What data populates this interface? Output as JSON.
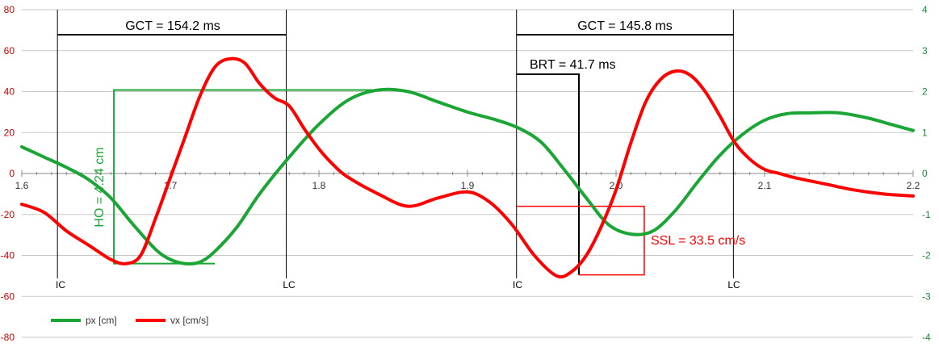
{
  "chart_data": {
    "type": "line",
    "title": "",
    "xlim": [
      1.6,
      2.2
    ],
    "ylim_left": [
      -80,
      80
    ],
    "ylim_right": [
      -4,
      4
    ],
    "x_ticks": [
      "1.6",
      "1.7",
      "1.8",
      "1.9",
      "2.0",
      "2.1",
      "2.2"
    ],
    "x_tick_values": [
      1.6,
      1.7,
      1.8,
      1.9,
      2.0,
      2.1,
      2.2
    ],
    "y_left_ticks": [
      "80",
      "60",
      "40",
      "20",
      "0",
      "-20",
      "-40",
      "-60",
      "-80"
    ],
    "y_left_tick_values": [
      80,
      60,
      40,
      20,
      0,
      -20,
      -40,
      -60,
      -80
    ],
    "y_right_ticks": [
      "4",
      "3",
      "2",
      "1",
      "0",
      "-1",
      "-2",
      "-3",
      "-4"
    ],
    "y_right_tick_values": [
      4,
      3,
      2,
      1,
      0,
      -1,
      -2,
      -3,
      -4
    ],
    "grid": true,
    "legend_position": "bottom-left",
    "colors": {
      "px": "#1aa535",
      "vx": "#ff0000",
      "annotation": "#000000"
    },
    "series": [
      {
        "name": "px [cm]",
        "axis": "right",
        "color": "#1aa535",
        "x": [
          1.6,
          1.615,
          1.63,
          1.645,
          1.66,
          1.675,
          1.69,
          1.7,
          1.71,
          1.72,
          1.73,
          1.745,
          1.76,
          1.78,
          1.8,
          1.82,
          1.84,
          1.86,
          1.88,
          1.9,
          1.92,
          1.935,
          1.95,
          1.965,
          1.98,
          1.995,
          2.01,
          2.025,
          2.04,
          2.055,
          2.07,
          2.085,
          2.1,
          2.115,
          2.13,
          2.15,
          2.17,
          2.185,
          2.2
        ],
        "y": [
          0.65,
          0.4,
          0.15,
          -0.15,
          -0.6,
          -1.25,
          -1.85,
          -2.1,
          -2.2,
          -2.16,
          -1.9,
          -1.3,
          -0.5,
          0.4,
          1.2,
          1.8,
          2.04,
          2.0,
          1.75,
          1.5,
          1.3,
          1.1,
          0.75,
          0.1,
          -0.6,
          -1.25,
          -1.48,
          -1.4,
          -0.9,
          -0.2,
          0.45,
          0.95,
          1.3,
          1.46,
          1.48,
          1.48,
          1.35,
          1.2,
          1.05
        ]
      },
      {
        "name": "vx [cm/s]",
        "axis": "left",
        "color": "#ff0000",
        "x": [
          1.6,
          1.615,
          1.63,
          1.645,
          1.66,
          1.67,
          1.68,
          1.69,
          1.7,
          1.71,
          1.72,
          1.73,
          1.74,
          1.75,
          1.76,
          1.77,
          1.78,
          1.79,
          1.8,
          1.81,
          1.82,
          1.84,
          1.86,
          1.88,
          1.9,
          1.915,
          1.93,
          1.945,
          1.96,
          1.97,
          1.98,
          1.99,
          2.0,
          2.01,
          2.02,
          2.03,
          2.04,
          2.05,
          2.06,
          2.07,
          2.08,
          2.09,
          2.1,
          2.11,
          2.12,
          2.14,
          2.16,
          2.18,
          2.2
        ],
        "y": [
          -15,
          -19,
          -28,
          -35,
          -42,
          -44,
          -40,
          -22,
          -2,
          18,
          38,
          52,
          56,
          54,
          44,
          37,
          33,
          22,
          12,
          4,
          -2,
          -10,
          -16,
          -12,
          -9,
          -14,
          -25,
          -40,
          -50,
          -48,
          -40,
          -26,
          -8,
          15,
          35,
          46,
          50,
          48,
          40,
          28,
          15,
          7,
          2,
          0,
          -2,
          -5,
          -8,
          -10,
          -11
        ]
      }
    ],
    "annotations": {
      "gct1": {
        "label": "GCT = 154.2 ms",
        "x_start": 1.624,
        "x_end": 1.778
      },
      "gct2": {
        "label": "GCT = 145.8 ms",
        "x_start": 1.933,
        "x_end": 2.079
      },
      "brt": {
        "label": "BRT = 41.7 ms",
        "x_start": 1.933,
        "x_end": 1.975
      },
      "ho": {
        "label": "HO = 4.24 cm"
      },
      "ssl": {
        "label": "SSL = 33.5 cm/s"
      },
      "ic1": "IC",
      "lc1": "LC",
      "ic2": "IC",
      "lc2": "LC"
    }
  }
}
